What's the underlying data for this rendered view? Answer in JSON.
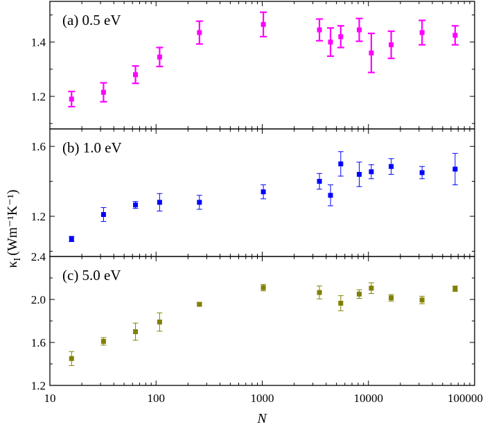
{
  "chart_data": {
    "type": "scatter",
    "xscale": "log",
    "xlim": [
      10,
      100000
    ],
    "xticks": [
      10,
      100,
      1000,
      10000,
      100000
    ],
    "xtick_labels": [
      "10",
      "100",
      "1000",
      "10000",
      "100000"
    ],
    "xlabel": "N",
    "ylabel_main": "κ",
    "ylabel_sub": "I",
    "ylabel_unit": "(Wm⁻¹K⁻¹)",
    "panels": [
      {
        "label": "(a) 0.5 eV",
        "color": "#ff00ff",
        "ylim": [
          1.08,
          1.55
        ],
        "yticks": [
          1.2,
          1.4
        ],
        "ytick_labels": [
          "1.2",
          "1.4"
        ],
        "points": [
          {
            "x": 16,
            "y": 1.19,
            "err": 0.028
          },
          {
            "x": 32,
            "y": 1.215,
            "err": 0.035
          },
          {
            "x": 64,
            "y": 1.28,
            "err": 0.032
          },
          {
            "x": 108,
            "y": 1.345,
            "err": 0.035
          },
          {
            "x": 256,
            "y": 1.435,
            "err": 0.042
          },
          {
            "x": 1024,
            "y": 1.465,
            "err": 0.045
          },
          {
            "x": 3456,
            "y": 1.445,
            "err": 0.04
          },
          {
            "x": 4394,
            "y": 1.4,
            "err": 0.052
          },
          {
            "x": 5488,
            "y": 1.42,
            "err": 0.04
          },
          {
            "x": 8192,
            "y": 1.445,
            "err": 0.042
          },
          {
            "x": 10648,
            "y": 1.36,
            "err": 0.072
          },
          {
            "x": 16384,
            "y": 1.39,
            "err": 0.05
          },
          {
            "x": 32000,
            "y": 1.435,
            "err": 0.045
          },
          {
            "x": 65536,
            "y": 1.425,
            "err": 0.035
          }
        ]
      },
      {
        "label": "(b) 1.0 eV",
        "color": "#0000ff",
        "ylim": [
          0.97,
          1.7
        ],
        "yticks": [
          1.2,
          1.6
        ],
        "ytick_labels": [
          "1.2",
          "1.6"
        ],
        "points": [
          {
            "x": 16,
            "y": 1.07,
            "err": 0.015
          },
          {
            "x": 32,
            "y": 1.21,
            "err": 0.04
          },
          {
            "x": 64,
            "y": 1.265,
            "err": 0.02
          },
          {
            "x": 108,
            "y": 1.28,
            "err": 0.05
          },
          {
            "x": 256,
            "y": 1.28,
            "err": 0.04
          },
          {
            "x": 1024,
            "y": 1.34,
            "err": 0.04
          },
          {
            "x": 3456,
            "y": 1.4,
            "err": 0.045
          },
          {
            "x": 4394,
            "y": 1.32,
            "err": 0.06
          },
          {
            "x": 5488,
            "y": 1.5,
            "err": 0.07
          },
          {
            "x": 8192,
            "y": 1.44,
            "err": 0.07
          },
          {
            "x": 10648,
            "y": 1.455,
            "err": 0.04
          },
          {
            "x": 16384,
            "y": 1.485,
            "err": 0.045
          },
          {
            "x": 32000,
            "y": 1.45,
            "err": 0.035
          },
          {
            "x": 65536,
            "y": 1.47,
            "err": 0.09
          }
        ]
      },
      {
        "label": "(c) 5.0 eV",
        "color": "#808000",
        "ylim": [
          1.2,
          2.4
        ],
        "yticks": [
          1.2,
          1.6,
          2.0,
          2.4
        ],
        "ytick_labels": [
          "1.2",
          "1.6",
          "2.0",
          "2.4"
        ],
        "points": [
          {
            "x": 16,
            "y": 1.45,
            "err": 0.065
          },
          {
            "x": 32,
            "y": 1.61,
            "err": 0.035
          },
          {
            "x": 64,
            "y": 1.7,
            "err": 0.08
          },
          {
            "x": 108,
            "y": 1.79,
            "err": 0.085
          },
          {
            "x": 256,
            "y": 1.955,
            "err": 0.012
          },
          {
            "x": 1024,
            "y": 2.11,
            "err": 0.03
          },
          {
            "x": 3456,
            "y": 2.065,
            "err": 0.06
          },
          {
            "x": 5488,
            "y": 1.965,
            "err": 0.07
          },
          {
            "x": 8192,
            "y": 2.05,
            "err": 0.04
          },
          {
            "x": 10648,
            "y": 2.105,
            "err": 0.05
          },
          {
            "x": 16384,
            "y": 2.015,
            "err": 0.03
          },
          {
            "x": 32000,
            "y": 1.995,
            "err": 0.035
          },
          {
            "x": 65536,
            "y": 2.1,
            "err": 0.025
          }
        ]
      }
    ]
  }
}
